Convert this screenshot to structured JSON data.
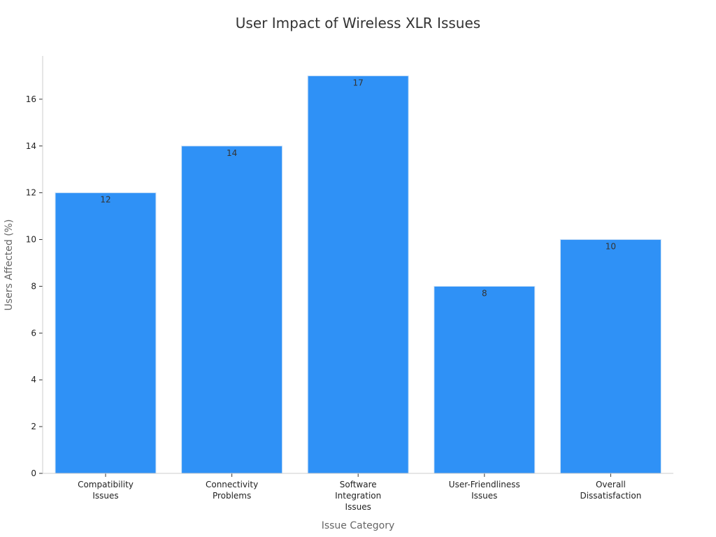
{
  "chart_data": {
    "type": "bar",
    "title": "User Impact of Wireless XLR Issues",
    "xlabel": "Issue Category",
    "ylabel": "Users Affected (%)",
    "categories": [
      [
        "Compatibility",
        "Issues"
      ],
      [
        "Connectivity",
        "Problems"
      ],
      [
        "Software",
        "Integration",
        "Issues"
      ],
      [
        "User-Friendliness",
        "Issues"
      ],
      [
        "Overall",
        "Dissatisfaction"
      ]
    ],
    "values": [
      12,
      14,
      17,
      8,
      10
    ],
    "ylim": [
      0,
      17.85
    ],
    "yticks": [
      0,
      2,
      4,
      6,
      8,
      10,
      12,
      14,
      16
    ],
    "grid": false,
    "legend": "none",
    "colors": {
      "bar": "#2f91f6",
      "bar_edge": "#cfe3f7",
      "axis": "#cccccc",
      "tick": "#333333"
    }
  }
}
